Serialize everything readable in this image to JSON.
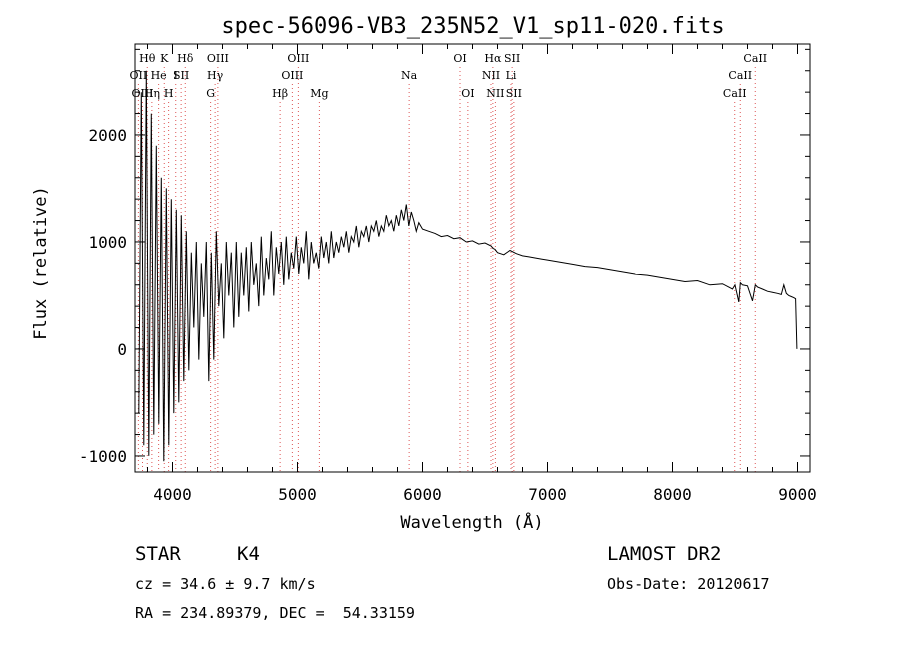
{
  "chart_data": {
    "type": "line",
    "title": "spec-56096-VB3_235N52_V1_sp11-020.fits",
    "xlabel": "Wavelength (Å)",
    "ylabel": "Flux (relative)",
    "xlim": [
      3700,
      9100
    ],
    "ylim": [
      -1150,
      2850
    ],
    "xticks": [
      4000,
      5000,
      6000,
      7000,
      8000,
      9000
    ],
    "yticks": [
      -1000,
      0,
      1000,
      2000
    ],
    "grid": false,
    "series": [
      {
        "x": [
          3730,
          3750,
          3770,
          3790,
          3810,
          3830,
          3850,
          3870,
          3890,
          3910,
          3930,
          3950,
          3970,
          3990,
          4010,
          4030,
          4050,
          4070,
          4090,
          4110,
          4130,
          4150,
          4170,
          4190,
          4210,
          4230,
          4250,
          4270,
          4290,
          4310,
          4330,
          4350,
          4370,
          4390,
          4410,
          4430,
          4450,
          4470,
          4490,
          4510,
          4530,
          4550,
          4570,
          4590,
          4610,
          4630,
          4650,
          4670,
          4690,
          4710,
          4730,
          4750,
          4770,
          4790,
          4810,
          4830,
          4850,
          4870,
          4890,
          4910,
          4930,
          4950,
          4970,
          4990,
          5010,
          5030,
          5050,
          5070,
          5090,
          5110,
          5130,
          5150,
          5170,
          5190,
          5210,
          5230,
          5250,
          5270,
          5290,
          5310,
          5330,
          5350,
          5370,
          5390,
          5410,
          5430,
          5450,
          5470,
          5490,
          5510,
          5530,
          5550,
          5570,
          5590,
          5610,
          5630,
          5650,
          5670,
          5690,
          5710,
          5730,
          5750,
          5770,
          5790,
          5810,
          5830,
          5850,
          5870,
          5890,
          5910,
          5930,
          5950,
          5970,
          6000,
          6050,
          6100,
          6150,
          6200,
          6250,
          6300,
          6350,
          6400,
          6450,
          6500,
          6550,
          6563,
          6580,
          6600,
          6650,
          6700,
          6750,
          6800,
          6850,
          6900,
          6950,
          7000,
          7100,
          7200,
          7300,
          7400,
          7500,
          7600,
          7700,
          7800,
          7900,
          8000,
          8100,
          8200,
          8300,
          8400,
          8480,
          8500,
          8530,
          8542,
          8560,
          8600,
          8640,
          8662,
          8680,
          8720,
          8760,
          8800,
          8840,
          8870,
          8890,
          8910,
          8930,
          8950,
          8970,
          8985,
          8995
        ],
        "y": [
          -600,
          2400,
          -900,
          2600,
          -1000,
          2200,
          -800,
          1900,
          -700,
          1600,
          -1050,
          1500,
          -900,
          1400,
          -600,
          1300,
          -500,
          1250,
          -300,
          1100,
          -200,
          900,
          200,
          1000,
          -100,
          800,
          300,
          1000,
          -300,
          900,
          -100,
          1100,
          400,
          800,
          100,
          1000,
          500,
          900,
          200,
          1000,
          300,
          900,
          500,
          950,
          350,
          1000,
          600,
          800,
          400,
          1050,
          500,
          850,
          650,
          1100,
          500,
          950,
          700,
          1000,
          600,
          1050,
          650,
          900,
          750,
          1050,
          700,
          950,
          800,
          1100,
          650,
          1000,
          800,
          900,
          750,
          1050,
          850,
          1000,
          800,
          1100,
          850,
          1000,
          900,
          1050,
          950,
          1100,
          900,
          1050,
          1000,
          1150,
          950,
          1100,
          1050,
          1150,
          1000,
          1150,
          1100,
          1200,
          1050,
          1150,
          1100,
          1250,
          1150,
          1200,
          1100,
          1250,
          1150,
          1300,
          1200,
          1350,
          1150,
          1280,
          1200,
          1100,
          1180,
          1120,
          1100,
          1080,
          1050,
          1060,
          1030,
          1040,
          1000,
          1010,
          980,
          990,
          960,
          940,
          930,
          900,
          880,
          920,
          890,
          870,
          860,
          850,
          840,
          830,
          810,
          790,
          770,
          760,
          740,
          720,
          700,
          690,
          670,
          650,
          630,
          640,
          600,
          610,
          560,
          600,
          440,
          620,
          600,
          590,
          450,
          600,
          580,
          560,
          540,
          530,
          520,
          510,
          600,
          520,
          500,
          490,
          480,
          470,
          0
        ]
      }
    ]
  },
  "lines_upper": [
    {
      "label": "Hθ",
      "x": 3798
    },
    {
      "label": "K",
      "x": 3934
    },
    {
      "label": "Hδ",
      "x": 4102
    },
    {
      "label": "OIII",
      "x": 4363
    },
    {
      "label": "OIII",
      "x": 5007
    },
    {
      "label": "OI",
      "x": 6300
    },
    {
      "label": "Hα",
      "x": 6563
    },
    {
      "label": "SII",
      "x": 6717
    },
    {
      "label": "CaII",
      "x": 8662
    }
  ],
  "lines_middle": [
    {
      "label": "OII",
      "x": 3727
    },
    {
      "label": "He",
      "x": 3889
    },
    {
      "label": "I",
      "x": 4026
    },
    {
      "label": "SII",
      "x": 4069
    },
    {
      "label": "Hγ",
      "x": 4341
    },
    {
      "label": "OIII",
      "x": 4959
    },
    {
      "label": "Na",
      "x": 5893
    },
    {
      "label": "NII",
      "x": 6548
    },
    {
      "label": "Li",
      "x": 6708
    },
    {
      "label": "CaII",
      "x": 8542
    }
  ],
  "lines_lower": [
    {
      "label": "OIII",
      "x": 3760
    },
    {
      "label": "Hη",
      "x": 3835
    },
    {
      "label": "H",
      "x": 3969
    },
    {
      "label": "G",
      "x": 4305
    },
    {
      "label": "Hβ",
      "x": 4861
    },
    {
      "label": "Mg",
      "x": 5175
    },
    {
      "label": "OI",
      "x": 6363
    },
    {
      "label": "NII",
      "x": 6583
    },
    {
      "label": "SII",
      "x": 6731
    },
    {
      "label": "CaII",
      "x": 8498
    }
  ],
  "info": {
    "class_label": "STAR",
    "subclass": "K4",
    "survey": "LAMOST DR2",
    "redshift": "cz = 34.6 ± 9.7 km/s",
    "obs_date": "Obs-Date: 20120617",
    "coords": "RA = 234.89379, DEC =  54.33159"
  },
  "colors": {
    "axis": "#000000",
    "spectrum": "#000000",
    "line_marker": "#dd5555",
    "label_text": "#000000"
  }
}
